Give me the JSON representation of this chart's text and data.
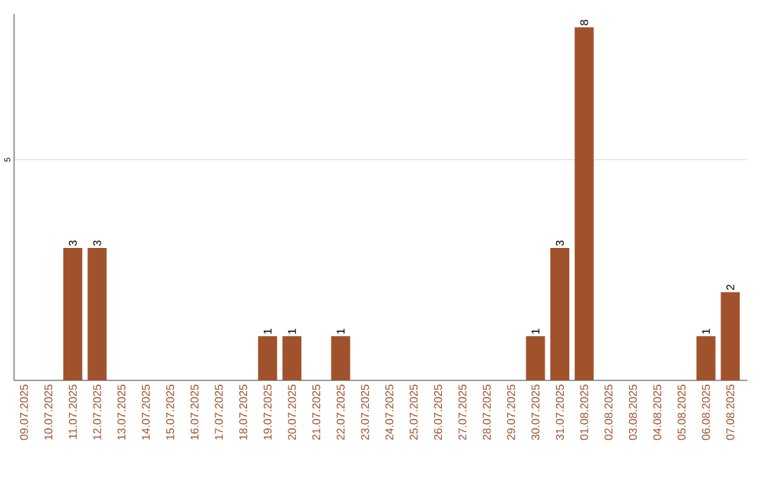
{
  "chart_data": {
    "type": "bar",
    "categories": [
      "09.07.2025",
      "10.07.2025",
      "11.07.2025",
      "12.07.2025",
      "13.07.2025",
      "14.07.2025",
      "15.07.2025",
      "16.07.2025",
      "17.07.2025",
      "18.07.2025",
      "19.07.2025",
      "20.07.2025",
      "21.07.2025",
      "22.07.2025",
      "23.07.2025",
      "24.07.2025",
      "25.07.2025",
      "26.07.2025",
      "27.07.2025",
      "28.07.2025",
      "29.07.2025",
      "30.07.2025",
      "31.07.2025",
      "01.08.2025",
      "02.08.2025",
      "03.08.2025",
      "04.08.2025",
      "05.08.2025",
      "06.08.2025",
      "07.08.2025"
    ],
    "values": [
      0,
      0,
      3,
      3,
      0,
      0,
      0,
      0,
      0,
      0,
      1,
      1,
      0,
      1,
      0,
      0,
      0,
      0,
      0,
      0,
      0,
      1,
      3,
      8,
      0,
      0,
      0,
      0,
      1,
      2
    ],
    "value_labels": [
      null,
      null,
      "3",
      "3",
      null,
      null,
      null,
      null,
      null,
      null,
      "1",
      "1",
      null,
      "1",
      null,
      null,
      null,
      null,
      null,
      null,
      null,
      "1",
      "3",
      "8",
      null,
      null,
      null,
      null,
      "1",
      "2"
    ],
    "color": "#a0522d",
    "ylim": [
      0,
      8.3
    ],
    "yticks": [
      5
    ],
    "grid": "y"
  }
}
